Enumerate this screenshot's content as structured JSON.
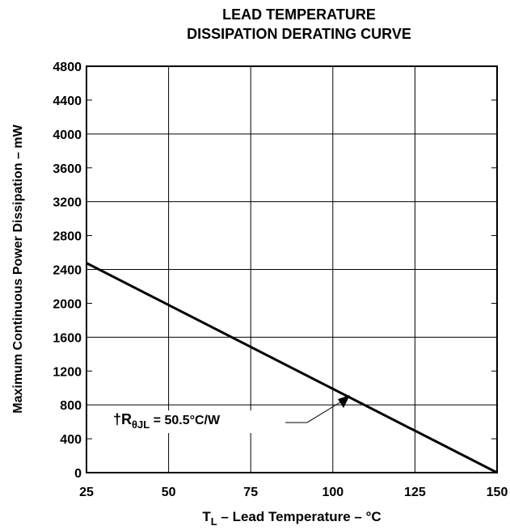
{
  "chart_data": {
    "type": "line",
    "title": [
      "LEAD TEMPERATURE",
      "DISSIPATION DERATING CURVE"
    ],
    "x_label": {
      "main": "T",
      "sub": "L",
      "rest": " – Lead Temperature – °C"
    },
    "y_label": "Maximum Continuous Power Dissipation – mW",
    "annotation": {
      "main": "†R",
      "sub": "θJL",
      "rest": " = 50.5°C/W"
    },
    "x": [
      25,
      150
    ],
    "series": [
      {
        "name": "RθJL",
        "color": "#000000",
        "values": [
          2475,
          0
        ]
      }
    ],
    "xlim": [
      25,
      150
    ],
    "xticks": [
      25,
      50,
      75,
      100,
      125,
      150
    ],
    "ylim": [
      0,
      4800
    ],
    "yticks": [
      0,
      400,
      800,
      1200,
      1600,
      2000,
      2400,
      2800,
      3200,
      3600,
      4000,
      4400,
      4800
    ],
    "grid": true
  }
}
